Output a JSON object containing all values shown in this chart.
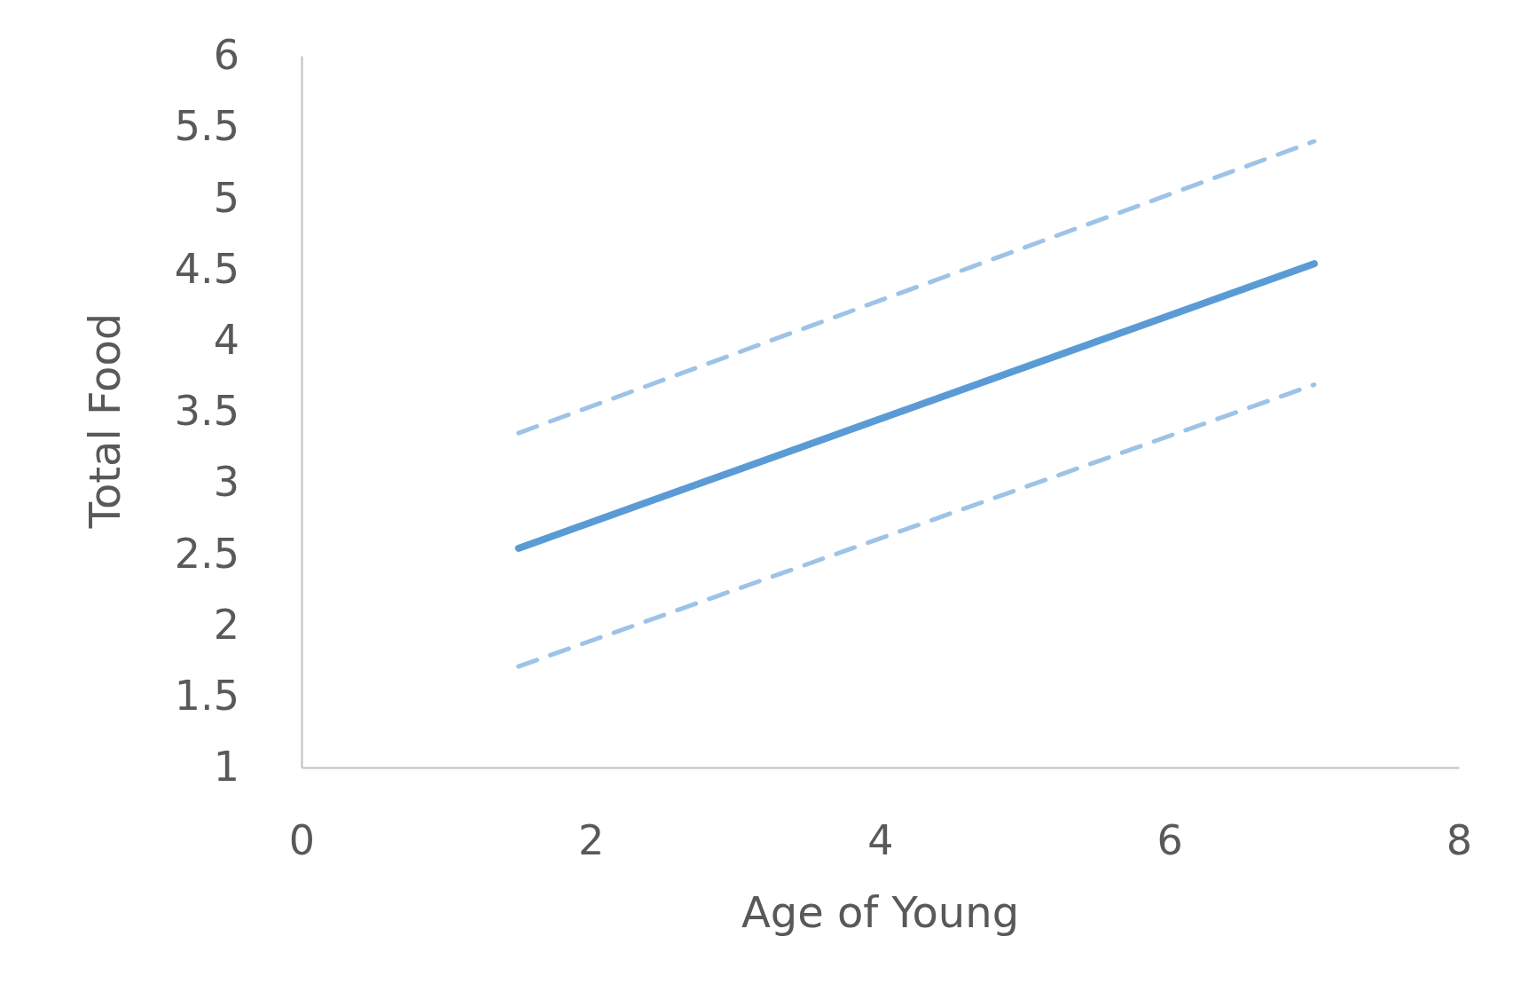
{
  "chart_data": {
    "type": "line",
    "xlabel": "Age of Young",
    "ylabel": "Total Food",
    "xlim": [
      0,
      8
    ],
    "xticks": [
      0,
      2,
      4,
      6,
      8
    ],
    "ylim": [
      1,
      6
    ],
    "yticks": [
      1,
      1.5,
      2,
      2.5,
      3,
      3.5,
      4,
      4.5,
      5,
      5.5,
      6
    ],
    "grid": false,
    "x": [
      1.5,
      7
    ],
    "series": [
      {
        "color": "#9dc3e6",
        "line_style": "dashed",
        "values": [
          3.35,
          5.4
        ]
      },
      {
        "color": "#5b9bd5",
        "line_style": "solid",
        "values": [
          2.54,
          4.54
        ]
      },
      {
        "color": "#9dc3e6",
        "line_style": "dashed",
        "values": [
          1.71,
          3.69
        ]
      }
    ]
  }
}
